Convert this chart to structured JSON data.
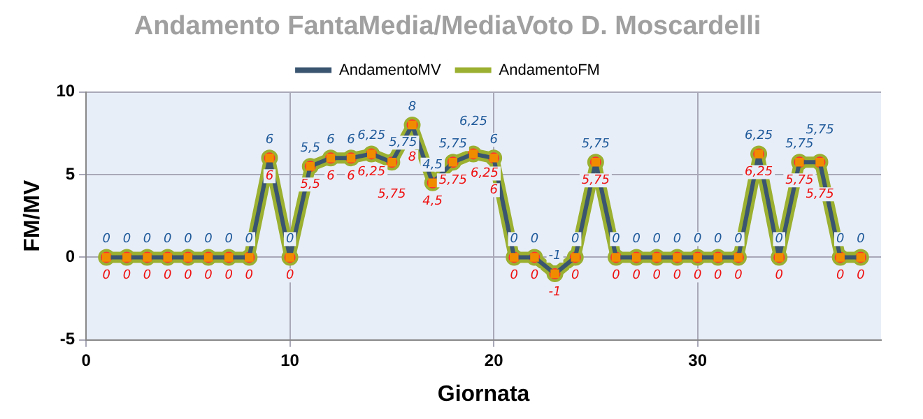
{
  "chart_data": {
    "type": "line",
    "title": "Andamento FantaMedia/MediaVoto D. Moscardelli",
    "xlabel": "Giornata",
    "ylabel": "FM/MV",
    "x": [
      1,
      2,
      3,
      4,
      5,
      6,
      7,
      8,
      9,
      10,
      11,
      12,
      13,
      14,
      15,
      16,
      17,
      18,
      19,
      20,
      21,
      22,
      23,
      24,
      25,
      26,
      27,
      28,
      29,
      30,
      31,
      32,
      33,
      34,
      35,
      36,
      37,
      38
    ],
    "xlim": [
      0,
      39
    ],
    "xticks": [
      0,
      10,
      20,
      30
    ],
    "ylim": [
      -5,
      10
    ],
    "yticks": [
      -5,
      0,
      5,
      10
    ],
    "grid": true,
    "legend": "top",
    "series": [
      {
        "name": "AndamentoMV",
        "color": "#3a5570",
        "marker": "square",
        "values": [
          0,
          0,
          0,
          0,
          0,
          0,
          0,
          0,
          6,
          0,
          5.5,
          6,
          6,
          6.25,
          5.75,
          8,
          4.5,
          5.75,
          6.25,
          6,
          0,
          0,
          -1,
          0,
          5.75,
          0,
          0,
          0,
          0,
          0,
          0,
          0,
          6.25,
          0,
          5.75,
          5.75,
          0,
          0
        ],
        "value_labels": [
          "0",
          "0",
          "0",
          "0",
          "0",
          "0",
          "0",
          "0",
          "6",
          "0",
          "5,5",
          "6",
          "6",
          "6,25",
          "5,75",
          "8",
          "4,5",
          "5,75",
          "6,25",
          "6",
          "0",
          "0",
          "-1",
          "0",
          "5,75",
          "0",
          "0",
          "0",
          "0",
          "0",
          "0",
          "0",
          "6,25",
          "0",
          "5,75",
          "5,75",
          "0",
          "0"
        ]
      },
      {
        "name": "AndamentoFM",
        "color": "#9bb030",
        "marker": "circle",
        "values": [
          0,
          0,
          0,
          0,
          0,
          0,
          0,
          0,
          6,
          0,
          5.5,
          6,
          6,
          6.25,
          5.75,
          8,
          4.5,
          5.75,
          6.25,
          6,
          0,
          0,
          -1,
          0,
          5.75,
          0,
          0,
          0,
          0,
          0,
          0,
          0,
          6.25,
          0,
          5.75,
          5.75,
          0,
          0
        ],
        "value_labels": [
          "0",
          "0",
          "0",
          "0",
          "0",
          "0",
          "0",
          "0",
          "6",
          "0",
          "5,5",
          "6",
          "6",
          "6,25",
          "5,75",
          "8",
          "4,5",
          "5,75",
          "6,25",
          "6",
          "0",
          "0",
          "-1",
          "0",
          "5,75",
          "0",
          "0",
          "0",
          "0",
          "0",
          "0",
          "0",
          "6,25",
          "0",
          "5,75",
          "5,75",
          "0",
          "0"
        ]
      }
    ]
  }
}
